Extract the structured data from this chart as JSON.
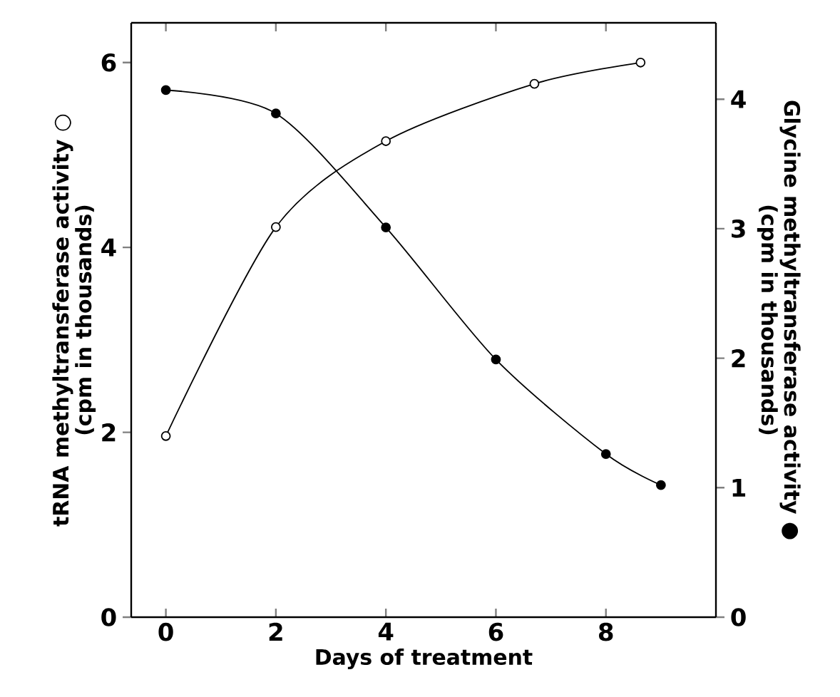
{
  "chart_data": {
    "type": "line",
    "xlabel": "Days of treatment",
    "ylabel": "tRNA methyltransferase activity ○\n(cpm in thousands)",
    "y2label": "Glycine methyltransferase activity ●\n(cpm in thousands)",
    "xlim": [
      -0.63,
      10
    ],
    "xticks": [
      0,
      2,
      4,
      6,
      8
    ],
    "ylim": [
      0,
      6.43
    ],
    "yticks": [
      0,
      2,
      4,
      6
    ],
    "y2lim": [
      0,
      4.59
    ],
    "y2ticks": [
      0,
      1,
      2,
      3,
      4
    ],
    "marker": "circle",
    "line_style": "solid",
    "grid": false,
    "series": [
      {
        "color": "#000000",
        "axis": "y",
        "x": [
          0,
          2,
          4,
          6.7,
          8.63
        ],
        "values": [
          1.96,
          4.22,
          5.15,
          5.77,
          6.0
        ]
      },
      {
        "color": "#000000",
        "axis": "y2",
        "x": [
          0,
          2,
          4,
          6,
          8,
          9
        ],
        "values": [
          4.07,
          3.89,
          3.01,
          1.99,
          1.26,
          1.02
        ]
      }
    ]
  }
}
